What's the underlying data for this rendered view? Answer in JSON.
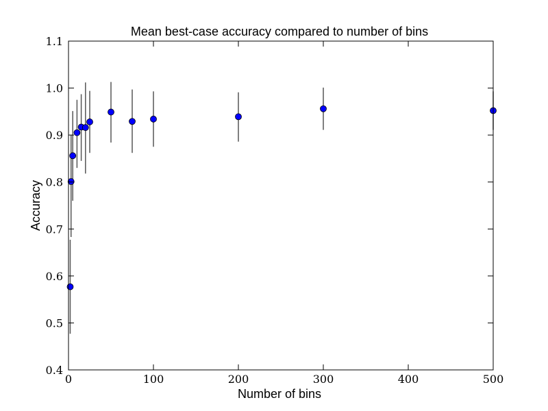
{
  "chart_data": {
    "type": "scatter",
    "title": "Mean best-case accuracy compared to number of bins",
    "xlabel": "Number of bins",
    "ylabel": "Accuracy",
    "xlim": [
      0,
      500
    ],
    "ylim": [
      0.4,
      1.1
    ],
    "x_ticks": [
      0,
      100,
      200,
      300,
      400,
      500
    ],
    "x_tick_labels": [
      "0",
      "100",
      "200",
      "300",
      "400",
      "500"
    ],
    "y_ticks": [
      0.4,
      0.5,
      0.6,
      0.7,
      0.8,
      0.9,
      1.0,
      1.1
    ],
    "y_tick_labels": [
      "0.4",
      "0.5",
      "0.6",
      "0.7",
      "0.8",
      "0.9",
      "1.0",
      "1.1"
    ],
    "grid": false,
    "marker_color": "#0000ff",
    "errorbar_color": "#555555",
    "series": [
      {
        "x": [
          2,
          3,
          5,
          10,
          15,
          20,
          25,
          50,
          75,
          100,
          200,
          300,
          500
        ],
        "y": [
          0.577,
          0.801,
          0.856,
          0.905,
          0.917,
          0.916,
          0.928,
          0.949,
          0.929,
          0.934,
          0.939,
          0.956,
          0.952
        ],
        "yerr_low": [
          0.477,
          0.683,
          0.76,
          0.83,
          0.845,
          0.818,
          0.862,
          0.884,
          0.862,
          0.875,
          0.886,
          0.911,
          0.911
        ],
        "yerr_high": [
          0.677,
          0.9,
          0.951,
          0.975,
          0.987,
          1.012,
          0.994,
          1.013,
          0.997,
          0.993,
          0.991,
          1.001,
          0.993
        ]
      }
    ]
  }
}
